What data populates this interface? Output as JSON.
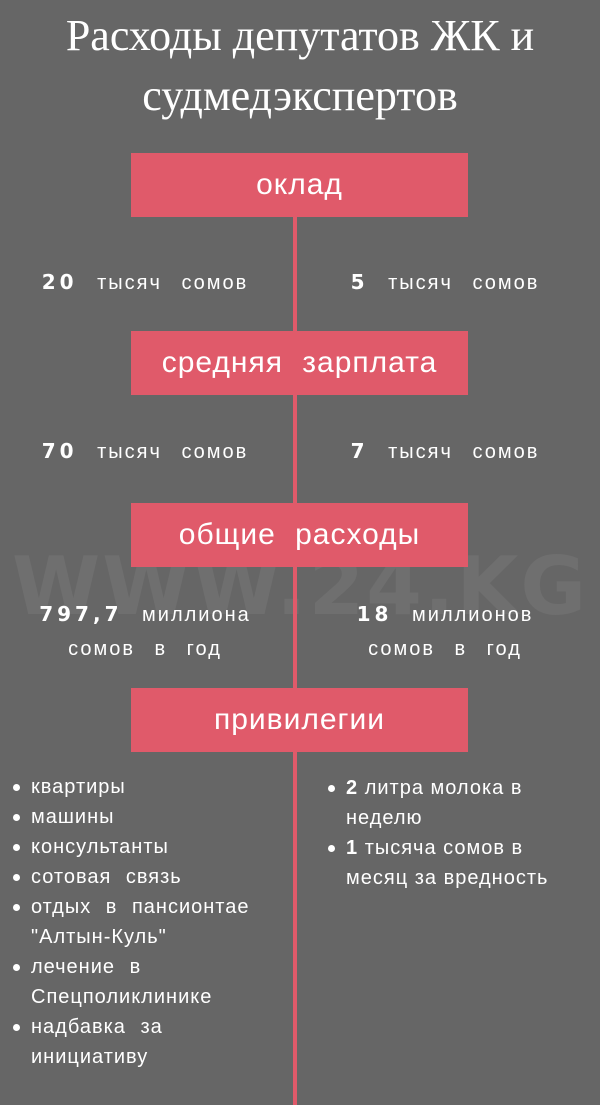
{
  "title": {
    "line1": "Расходы депутатов ЖК и",
    "line2": "судмедэкспертов"
  },
  "watermark": "WWW.24.KG",
  "colors": {
    "background": "#666666",
    "accent": "#e05a6a",
    "text": "#ffffff"
  },
  "sections": [
    {
      "label": "оклад",
      "left": {
        "num": "20",
        "text": "тысяч сомов"
      },
      "right": {
        "num": "5",
        "text": "тысяч сомов"
      }
    },
    {
      "label": "средняя зарплата",
      "left": {
        "num": "70",
        "text": "тысяч сомов"
      },
      "right": {
        "num": "7",
        "text": "тысяч сомов"
      }
    },
    {
      "label": "общие расходы",
      "left": {
        "num": "797,7",
        "text": "миллиона",
        "text2": "сомов в год"
      },
      "right": {
        "num": "18",
        "text": "миллионов",
        "text2": "сомов в год"
      }
    },
    {
      "label": "привилегии"
    }
  ],
  "privileges_left": [
    "квартиры",
    "машины",
    "консультанты",
    "сотовая связь",
    "отдых в пансионтае \"Алтын-Куль\"",
    "лечение в Спецполиклинике",
    "надбавка за инициативу"
  ],
  "privileges_right": [
    {
      "num": "2",
      "text": "литра молока в неделю"
    },
    {
      "num": "1",
      "text": "тысяча сомов в месяц за вредность"
    }
  ]
}
